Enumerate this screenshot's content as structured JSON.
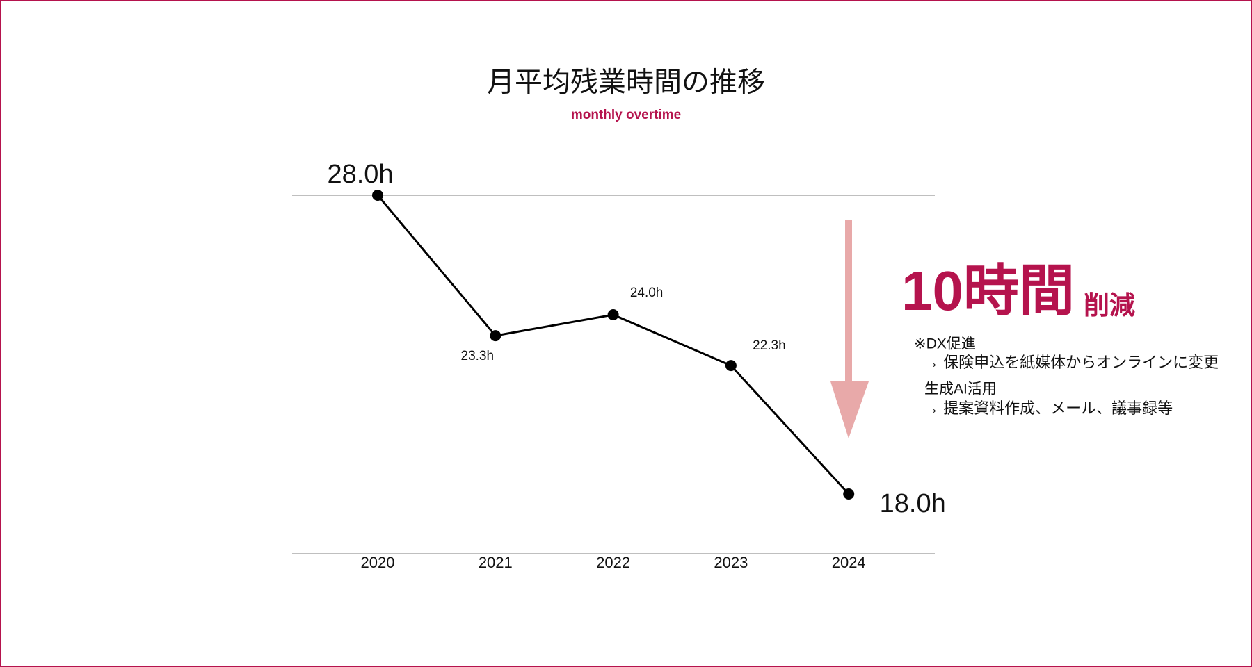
{
  "chart_data": {
    "type": "line",
    "title": "月平均残業時間の推移",
    "subtitle": "monthly overtime",
    "categories": [
      "2020",
      "2021",
      "2022",
      "2023",
      "2024"
    ],
    "values": [
      28.0,
      23.3,
      24.0,
      22.3,
      18.0
    ],
    "value_labels": [
      "28.0h",
      "23.3h",
      "24.0h",
      "22.3h",
      "18.0h"
    ],
    "color": "#000000",
    "ylim": [
      16,
      28
    ],
    "annotations": [
      "10時間",
      "削減",
      "※DX促進",
      "→ 保険申込を紙媒体からオンラインに変更",
      "生成AI活用",
      "→ 提案資料作成、メール、議事録等"
    ]
  }
}
